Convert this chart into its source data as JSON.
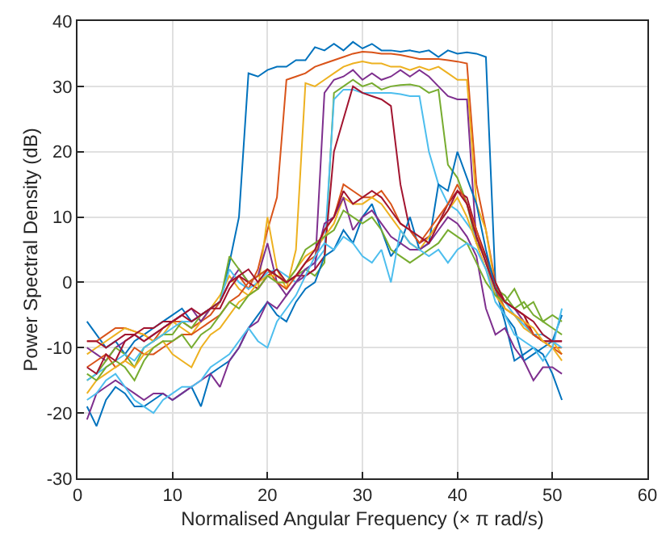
{
  "chart_data": {
    "type": "line",
    "xlabel": "Normalised Angular Frequency (× π rad/s)",
    "ylabel": "Power Spectral Density (dB)",
    "xlim": [
      0,
      60
    ],
    "xticks": [
      0,
      10,
      20,
      30,
      40,
      50,
      60
    ],
    "ylim": [
      -30,
      40
    ],
    "yticks": [
      -30,
      -20,
      -10,
      0,
      10,
      20,
      30,
      40
    ],
    "grid": true,
    "x": [
      1,
      2,
      3,
      4,
      5,
      6,
      7,
      8,
      9,
      10,
      11,
      12,
      13,
      14,
      15,
      16,
      17,
      18,
      19,
      20,
      21,
      22,
      23,
      24,
      25,
      26,
      27,
      28,
      29,
      30,
      31,
      32,
      33,
      34,
      35,
      36,
      37,
      38,
      39,
      40,
      41,
      42,
      43,
      44,
      45,
      46,
      47,
      48,
      49,
      50,
      51
    ],
    "series": [
      {
        "color": "#0072bd",
        "values": [
          -6,
          -8,
          -10,
          -9,
          -11,
          -9,
          -8,
          -7,
          -6,
          -5,
          -4,
          -6,
          -5,
          -4,
          -3,
          3,
          10,
          32,
          31.5,
          32.5,
          33,
          33,
          34,
          34,
          36,
          35.5,
          36.5,
          35.5,
          36.8,
          35.8,
          36.5,
          35.5,
          35.5,
          35.3,
          35.5,
          35.2,
          35.5,
          34.5,
          35.5,
          35,
          35.2,
          35,
          34.5,
          0,
          -5,
          -7,
          -12,
          -11,
          -10,
          -9,
          -5
        ]
      },
      {
        "color": "#d95319",
        "values": [
          -9,
          -9,
          -8,
          -7,
          -7,
          -7.5,
          -8,
          -9,
          -7,
          -6,
          -6,
          -7,
          -6,
          -5,
          -3,
          0,
          1,
          -1,
          2,
          8,
          13,
          31,
          31.5,
          32,
          33,
          33.5,
          34,
          34.5,
          35,
          35.3,
          35.2,
          35,
          35,
          34.8,
          34.5,
          34.2,
          34.2,
          34.2,
          34,
          33.8,
          33.5,
          15,
          8,
          0,
          -3,
          -4,
          -5,
          -8,
          -9,
          -10,
          -10
        ]
      },
      {
        "color": "#edb120",
        "values": [
          -11,
          -10,
          -9,
          -8,
          -7,
          -7.5,
          -8,
          -9,
          -8,
          -6,
          -7,
          -8,
          -6,
          -4,
          -2,
          1,
          -1,
          -2,
          -1,
          10,
          2,
          -1,
          5,
          30.5,
          30,
          31,
          32,
          33,
          33.5,
          33.8,
          33.5,
          33.5,
          33,
          33,
          32.5,
          33,
          32.5,
          33,
          32,
          31,
          31,
          12,
          8,
          -1,
          -4,
          -5,
          -7,
          -8,
          -9,
          -9,
          -11
        ]
      },
      {
        "color": "#7e2f8e",
        "values": [
          -10,
          -11,
          -12,
          -10,
          -9,
          -8,
          -9,
          -8,
          -7,
          -6,
          -5,
          -4,
          -6,
          -4,
          -3,
          0,
          2,
          0,
          1,
          6,
          0,
          -2,
          0,
          1,
          2,
          29,
          31,
          31.5,
          32.5,
          31,
          32,
          31,
          31.5,
          32.5,
          31.5,
          32.5,
          31.5,
          30,
          28.5,
          28,
          28,
          6,
          4,
          -1,
          -3,
          -4,
          -6,
          -8,
          -9,
          -9,
          -9
        ]
      },
      {
        "color": "#77ac30",
        "values": [
          -15,
          -14,
          -12,
          -10,
          -11,
          -13,
          -10,
          -9,
          -8,
          -8,
          -6,
          -7,
          -5,
          -4,
          -3,
          4,
          2,
          0,
          1,
          2,
          1,
          0,
          1,
          2,
          1,
          3,
          29,
          30,
          31,
          30,
          30.5,
          29.5,
          30,
          30.2,
          30.3,
          30,
          29,
          29.5,
          18,
          16,
          12,
          6,
          4,
          -1,
          -2,
          -4,
          -3,
          -5,
          -6,
          -7,
          -8
        ]
      },
      {
        "color": "#4dbeee",
        "values": [
          -15,
          -14,
          -13,
          -12,
          -11,
          -12,
          -10,
          -9,
          -8,
          -7,
          -6,
          -6,
          -5,
          -4,
          -3,
          2,
          0,
          -1,
          0,
          1.5,
          2,
          1,
          0,
          2,
          3,
          5,
          28,
          29.5,
          29.5,
          29,
          29,
          29,
          29,
          28.8,
          28.5,
          28.5,
          20,
          15,
          12,
          11,
          9,
          7,
          3,
          -2,
          -3,
          -5,
          -6.5,
          -8,
          -8,
          -9,
          -10
        ]
      },
      {
        "color": "#a2142f",
        "values": [
          -9,
          -9,
          -10,
          -9,
          -8,
          -8,
          -7,
          -7,
          -6,
          -6,
          -5,
          -6,
          -5,
          -4,
          -3,
          0,
          1,
          0,
          -1,
          1,
          2,
          0,
          1,
          1,
          2,
          4,
          20,
          25,
          30,
          29,
          28.5,
          28,
          27,
          15,
          8,
          6,
          7,
          9,
          12,
          14,
          13,
          8,
          4,
          0,
          -3,
          -4,
          -5,
          -8,
          -9,
          -9,
          -9
        ]
      },
      {
        "color": "#0072bd",
        "values": [
          -19,
          -22,
          -18,
          -16,
          -17,
          -19,
          -19,
          -18,
          -17,
          -18,
          -17,
          -16,
          -19,
          -14,
          -13,
          -12,
          -10,
          -7,
          -5,
          -3,
          -5,
          -6,
          -3,
          -1,
          0,
          4,
          5,
          8,
          6,
          10,
          12,
          8,
          4,
          6,
          10,
          5,
          6,
          15,
          14,
          20,
          16,
          12,
          5,
          -1,
          -6,
          -12,
          -11,
          -10,
          -11,
          -14,
          -18
        ]
      },
      {
        "color": "#d95319",
        "values": [
          -13,
          -12,
          -11,
          -13,
          -12,
          -10,
          -11,
          -11,
          -10,
          -9,
          -8,
          -8,
          -7,
          -6,
          -5,
          -3,
          -2,
          0,
          1,
          2,
          0,
          -1,
          1,
          3,
          4,
          8,
          10,
          15,
          14,
          13,
          13,
          14,
          12,
          9,
          8,
          6,
          8,
          10,
          12,
          15,
          12,
          8,
          3,
          -1,
          -4,
          -5,
          -6,
          -8,
          -9,
          -10,
          -11
        ]
      },
      {
        "color": "#edb120",
        "values": [
          -17,
          -15,
          -14,
          -13,
          -12,
          -13,
          -11,
          -10,
          -9,
          -11,
          -12,
          -13,
          -10,
          -8,
          -7,
          -5,
          -3,
          -2,
          0,
          1,
          1,
          0,
          2,
          4,
          5,
          7,
          9,
          13,
          12,
          12,
          13,
          12,
          10,
          8,
          6,
          5,
          7,
          9,
          11,
          13,
          10,
          6,
          2,
          -2,
          -4,
          -5,
          -6,
          -7,
          -9,
          -10,
          -12
        ]
      },
      {
        "color": "#7e2f8e",
        "values": [
          -21,
          -17,
          -16,
          -15,
          -16,
          -17,
          -18,
          -17,
          -17,
          -18,
          -17,
          -16,
          -15,
          -14,
          -16,
          -12,
          -10,
          -7,
          -6,
          -3,
          -4,
          -2,
          0,
          2,
          3,
          9,
          10,
          13,
          8,
          10,
          11,
          9,
          7,
          6,
          5,
          5,
          6,
          8,
          10,
          9,
          7,
          4,
          -4,
          -8,
          -7,
          -10,
          -12,
          -15,
          -13,
          -13,
          -14
        ]
      },
      {
        "color": "#77ac30",
        "values": [
          -14,
          -15,
          -13,
          -12,
          -13,
          -15,
          -12,
          -10,
          -9,
          -9,
          -8,
          -10,
          -8,
          -7,
          -5,
          -3,
          -4,
          -2,
          -1,
          1,
          0,
          0,
          2,
          5,
          6,
          7,
          8,
          11,
          10,
          9,
          10,
          8,
          5,
          4,
          3,
          4,
          5,
          6,
          8,
          7,
          6,
          3,
          0,
          -2,
          -3,
          -1,
          -4,
          -3,
          -6,
          -5,
          -6
        ]
      },
      {
        "color": "#4dbeee",
        "values": [
          -18,
          -17,
          -15,
          -14,
          -16,
          -18,
          -19,
          -20,
          -18,
          -17,
          -16,
          -16,
          -15,
          -13,
          -12,
          -11,
          -9,
          -7,
          -9,
          -10,
          -6,
          -4,
          -2,
          1,
          4,
          6,
          5,
          7,
          6,
          4,
          3,
          5,
          0,
          8,
          6,
          5,
          4,
          5,
          3,
          5,
          6,
          5,
          2,
          -3,
          -5,
          -8,
          -9,
          -10,
          -12,
          -10,
          -4
        ]
      },
      {
        "color": "#a2142f",
        "values": [
          -13,
          -14,
          -11,
          -12,
          -9,
          -8,
          -9,
          -8,
          -7,
          -6,
          -5,
          -4,
          -5,
          -4,
          -4,
          -1,
          1,
          2,
          0,
          2,
          1,
          0,
          1,
          3,
          5,
          8,
          10,
          14,
          12,
          13,
          14,
          13,
          11,
          9,
          8,
          7,
          6,
          9,
          11,
          14,
          12,
          7,
          3,
          -1,
          -3,
          -4,
          -5,
          -6,
          -8,
          -9,
          -9
        ]
      }
    ]
  }
}
